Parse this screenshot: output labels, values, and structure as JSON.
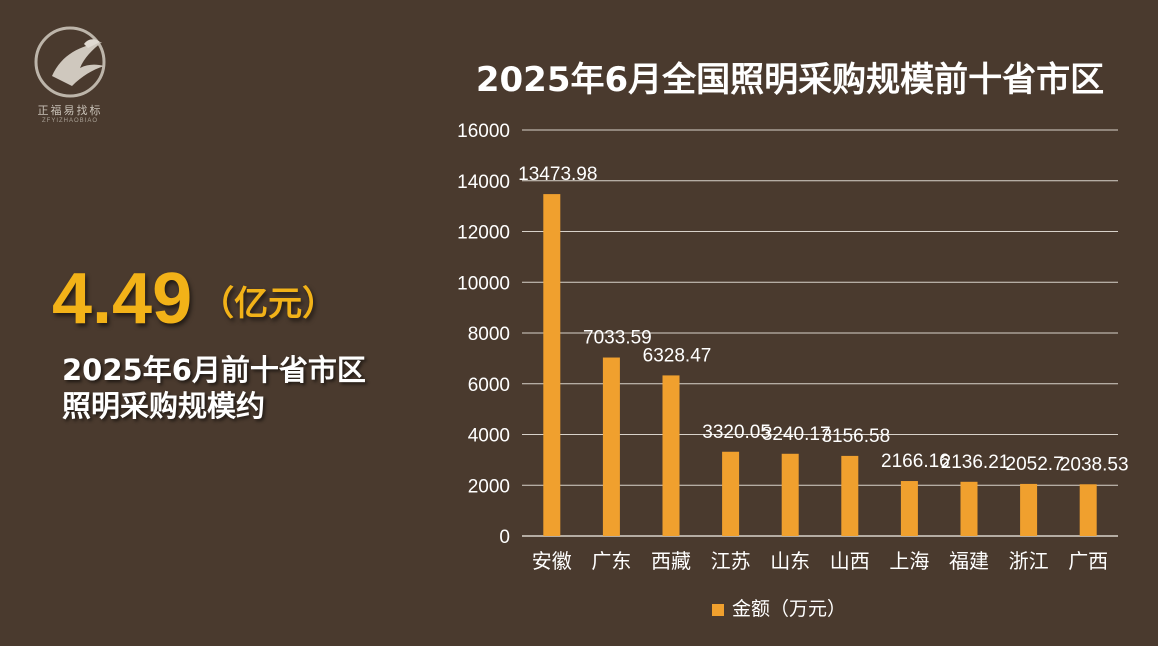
{
  "logo": {
    "name": "正福易找标",
    "subtitle": "ZFYIZHAOBIAO"
  },
  "summary": {
    "value": "4.49",
    "unit": "（亿元）",
    "line1": "2025年6月前十省市区",
    "line2": "照明采购规模约"
  },
  "colors": {
    "background": "#4a3a2e",
    "bar": "#f0a02e",
    "highlight": "#f2b218"
  },
  "chart_data": {
    "type": "bar",
    "title": "2025年6月全国照明采购规模前十省市区",
    "categories": [
      "安徽",
      "广东",
      "西藏",
      "江苏",
      "山东",
      "山西",
      "上海",
      "福建",
      "浙江",
      "广西"
    ],
    "series": [
      {
        "name": "金额（万元）",
        "values": [
          13473.98,
          7033.59,
          6328.47,
          3320.05,
          3240.17,
          3156.58,
          2166.16,
          2136.21,
          2052.7,
          2038.53
        ]
      }
    ],
    "data_labels": [
      "13473.98",
      "7033.59",
      "6328.47",
      "3320.05",
      "3240.17",
      "3156.58",
      "2166.16",
      "2136.21",
      "2052.7",
      "2038.53"
    ],
    "y_ticks": [
      "0",
      "2000",
      "4000",
      "6000",
      "8000",
      "10000",
      "12000",
      "14000",
      "16000"
    ],
    "ylim": [
      0,
      16000
    ],
    "grid": true,
    "legend": "bottom"
  }
}
